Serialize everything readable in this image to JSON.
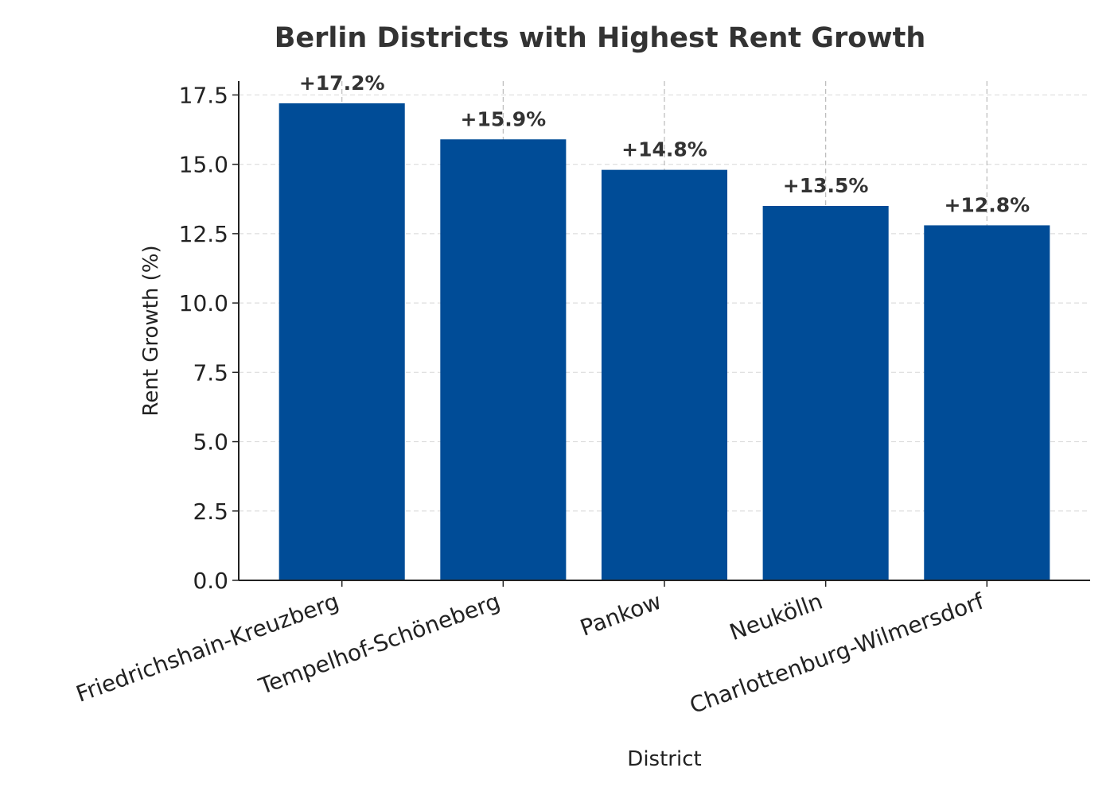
{
  "chart_data": {
    "type": "bar",
    "title": "Berlin Districts with Highest Rent Growth",
    "xlabel": "District",
    "ylabel": "Rent Growth (%)",
    "categories": [
      "Friedrichshain-Kreuzberg",
      "Tempelhof-Schöneberg",
      "Pankow",
      "Neukölln",
      "Charlottenburg-Wilmersdorf"
    ],
    "values": [
      17.2,
      15.9,
      14.8,
      13.5,
      12.8
    ],
    "data_labels": [
      "+17.2%",
      "+15.9%",
      "+14.8%",
      "+13.5%",
      "+12.8%"
    ],
    "yticks": [
      0.0,
      2.5,
      5.0,
      7.5,
      10.0,
      12.5,
      15.0,
      17.5
    ],
    "ytick_labels": [
      "0.0",
      "2.5",
      "5.0",
      "7.5",
      "10.0",
      "12.5",
      "15.0",
      "17.5"
    ],
    "ylim": [
      0,
      18.0
    ],
    "grid": true,
    "bar_color": "#004C97"
  }
}
